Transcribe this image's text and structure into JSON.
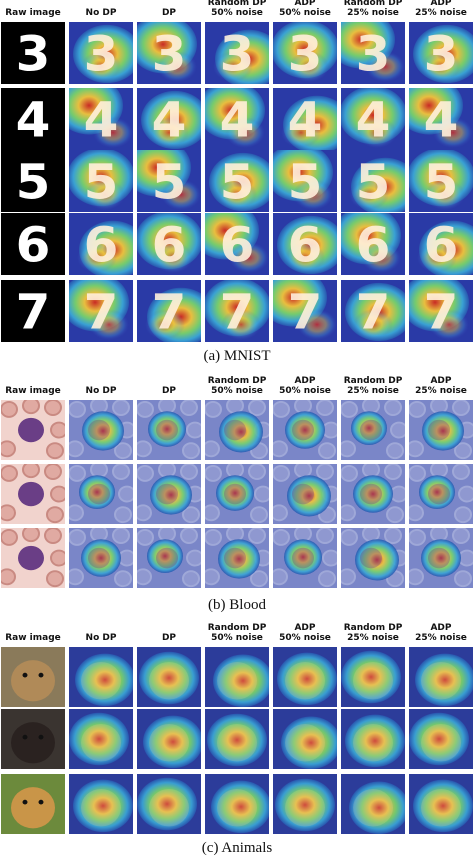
{
  "figure": {
    "columns": [
      "Raw image",
      "No DP",
      "DP",
      "Random DP\n50% noise",
      "ADP\n50% noise",
      "Random DP\n25% noise",
      "ADP\n25% noise"
    ],
    "panels": [
      {
        "caption": "(a) MNIST",
        "kind": "mnist",
        "rows": [
          "3",
          "4",
          "5",
          "6",
          "7"
        ]
      },
      {
        "caption": "(b) Blood",
        "kind": "blood",
        "rows": [
          "cell-1",
          "cell-2",
          "cell-3"
        ]
      },
      {
        "caption": "(c) Animals",
        "kind": "animals",
        "rows": [
          "cat",
          "rottweiler",
          "golden-retriever"
        ]
      }
    ]
  },
  "colors": {
    "jet_blue": "#1e2a9a",
    "jet_cyan": "#3fb8d8",
    "jet_yellow": "#e8d84a",
    "jet_red": "#c9221c"
  }
}
